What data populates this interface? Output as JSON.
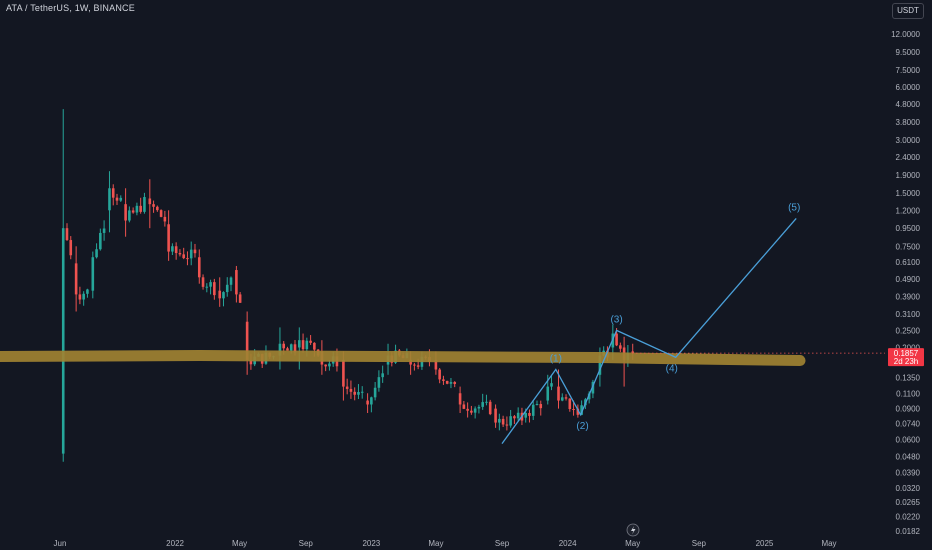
{
  "header": {
    "symbol": "ATA / TetherUS, 1W, BINANCE",
    "currency": "USDT"
  },
  "chart_data": {
    "type": "candlestick",
    "y_scale": "log",
    "ylim": [
      0.017,
      13
    ],
    "y_ticks": [
      "12.0000",
      "9.5000",
      "7.5000",
      "6.0000",
      "4.8000",
      "3.8000",
      "3.0000",
      "2.4000",
      "1.9000",
      "1.5000",
      "1.2000",
      "0.9500",
      "0.7500",
      "0.6100",
      "0.4900",
      "0.3900",
      "0.3100",
      "0.2500",
      "0.2000",
      "0.1350",
      "0.1100",
      "0.0900",
      "0.0740",
      "0.0600",
      "0.0480",
      "0.0390",
      "0.0320",
      "0.0265",
      "0.0220",
      "0.0182"
    ],
    "x_ticks": [
      {
        "label": "Jun",
        "date": "2021-06-01"
      },
      {
        "label": "2022",
        "date": "2022-01-01"
      },
      {
        "label": "May",
        "date": "2022-05-01"
      },
      {
        "label": "Sep",
        "date": "2022-09-01"
      },
      {
        "label": "2023",
        "date": "2023-01-01"
      },
      {
        "label": "May",
        "date": "2023-05-01"
      },
      {
        "label": "Sep",
        "date": "2023-09-01"
      },
      {
        "label": "2024",
        "date": "2024-01-01"
      },
      {
        "label": "May",
        "date": "2024-05-01"
      },
      {
        "label": "Sep",
        "date": "2024-09-01"
      },
      {
        "label": "2025",
        "date": "2025-01-01"
      },
      {
        "label": "May",
        "date": "2025-05-01"
      }
    ],
    "ohlc_anchors": [
      {
        "date": "2021-06-07",
        "open": 0.05,
        "high": 4.5,
        "low": 0.045,
        "close": 0.95
      },
      {
        "date": "2021-07-01",
        "open": 0.6,
        "high": 0.75,
        "low": 0.32,
        "close": 0.4
      },
      {
        "date": "2021-08-01",
        "open": 0.42,
        "high": 0.7,
        "low": 0.38,
        "close": 0.65
      },
      {
        "date": "2021-09-01",
        "open": 1.2,
        "high": 2.0,
        "low": 0.9,
        "close": 1.6
      },
      {
        "date": "2021-10-01",
        "open": 1.3,
        "high": 1.6,
        "low": 0.85,
        "close": 1.05
      },
      {
        "date": "2021-11-15",
        "open": 1.4,
        "high": 1.8,
        "low": 0.95,
        "close": 1.3
      },
      {
        "date": "2021-12-20",
        "open": 1.0,
        "high": 1.2,
        "low": 0.62,
        "close": 0.7
      },
      {
        "date": "2022-02-15",
        "open": 0.65,
        "high": 0.72,
        "low": 0.46,
        "close": 0.5
      },
      {
        "date": "2022-03-25",
        "open": 0.42,
        "high": 0.5,
        "low": 0.34,
        "close": 0.38
      },
      {
        "date": "2022-04-25",
        "open": 0.55,
        "high": 0.58,
        "low": 0.36,
        "close": 0.4
      },
      {
        "date": "2022-05-15",
        "open": 0.28,
        "high": 0.32,
        "low": 0.14,
        "close": 0.17
      },
      {
        "date": "2022-07-15",
        "open": 0.18,
        "high": 0.26,
        "low": 0.15,
        "close": 0.21
      },
      {
        "date": "2022-08-20",
        "open": 0.2,
        "high": 0.26,
        "low": 0.15,
        "close": 0.22
      },
      {
        "date": "2022-10-01",
        "open": 0.19,
        "high": 0.22,
        "low": 0.14,
        "close": 0.16
      },
      {
        "date": "2022-11-10",
        "open": 0.17,
        "high": 0.19,
        "low": 0.1,
        "close": 0.12
      },
      {
        "date": "2022-12-25",
        "open": 0.1,
        "high": 0.11,
        "low": 0.085,
        "close": 0.095
      },
      {
        "date": "2023-02-01",
        "open": 0.16,
        "high": 0.21,
        "low": 0.14,
        "close": 0.18
      },
      {
        "date": "2023-03-15",
        "open": 0.17,
        "high": 0.19,
        "low": 0.14,
        "close": 0.16
      },
      {
        "date": "2023-05-01",
        "open": 0.17,
        "high": 0.19,
        "low": 0.14,
        "close": 0.15
      },
      {
        "date": "2023-06-15",
        "open": 0.11,
        "high": 0.12,
        "low": 0.085,
        "close": 0.095
      },
      {
        "date": "2023-08-20",
        "open": 0.09,
        "high": 0.095,
        "low": 0.07,
        "close": 0.075
      },
      {
        "date": "2023-10-15",
        "open": 0.08,
        "high": 0.09,
        "low": 0.075,
        "close": 0.085
      },
      {
        "date": "2023-11-25",
        "open": 0.1,
        "high": 0.14,
        "low": 0.095,
        "close": 0.12
      },
      {
        "date": "2023-12-15",
        "open": 0.12,
        "high": 0.15,
        "low": 0.09,
        "close": 0.1
      },
      {
        "date": "2024-01-20",
        "open": 0.09,
        "high": 0.095,
        "low": 0.08,
        "close": 0.083
      },
      {
        "date": "2024-03-01",
        "open": 0.14,
        "high": 0.2,
        "low": 0.12,
        "close": 0.18
      },
      {
        "date": "2024-03-25",
        "open": 0.2,
        "high": 0.27,
        "low": 0.17,
        "close": 0.24
      },
      {
        "date": "2024-04-15",
        "open": 0.2,
        "high": 0.23,
        "low": 0.12,
        "close": 0.17
      },
      {
        "date": "2024-05-01",
        "open": 0.19,
        "high": 0.21,
        "low": 0.17,
        "close": 0.1857
      }
    ],
    "current_price": "0.1857",
    "countdown": "2d 23h",
    "support_level": 0.18,
    "colors": {
      "up": "#26a69a",
      "down": "#ef5350",
      "support": "#a08232",
      "wave": "#4a9fd8",
      "background": "#131722"
    },
    "elliott_wave": {
      "labels": [
        "(1)",
        "(2)",
        "(3)",
        "(4)",
        "(5)"
      ],
      "points": [
        {
          "date": "2023-09-01",
          "price": 0.057,
          "label": ""
        },
        {
          "date": "2023-12-10",
          "price": 0.15,
          "label": "(1)"
        },
        {
          "date": "2024-01-25",
          "price": 0.083,
          "label": "(2)"
        },
        {
          "date": "2024-04-01",
          "price": 0.25,
          "label": "(3)"
        },
        {
          "date": "2024-07-20",
          "price": 0.176,
          "label": "(4)"
        },
        {
          "date": "2025-03-01",
          "price": 1.08,
          "label": "(5)"
        }
      ]
    }
  }
}
